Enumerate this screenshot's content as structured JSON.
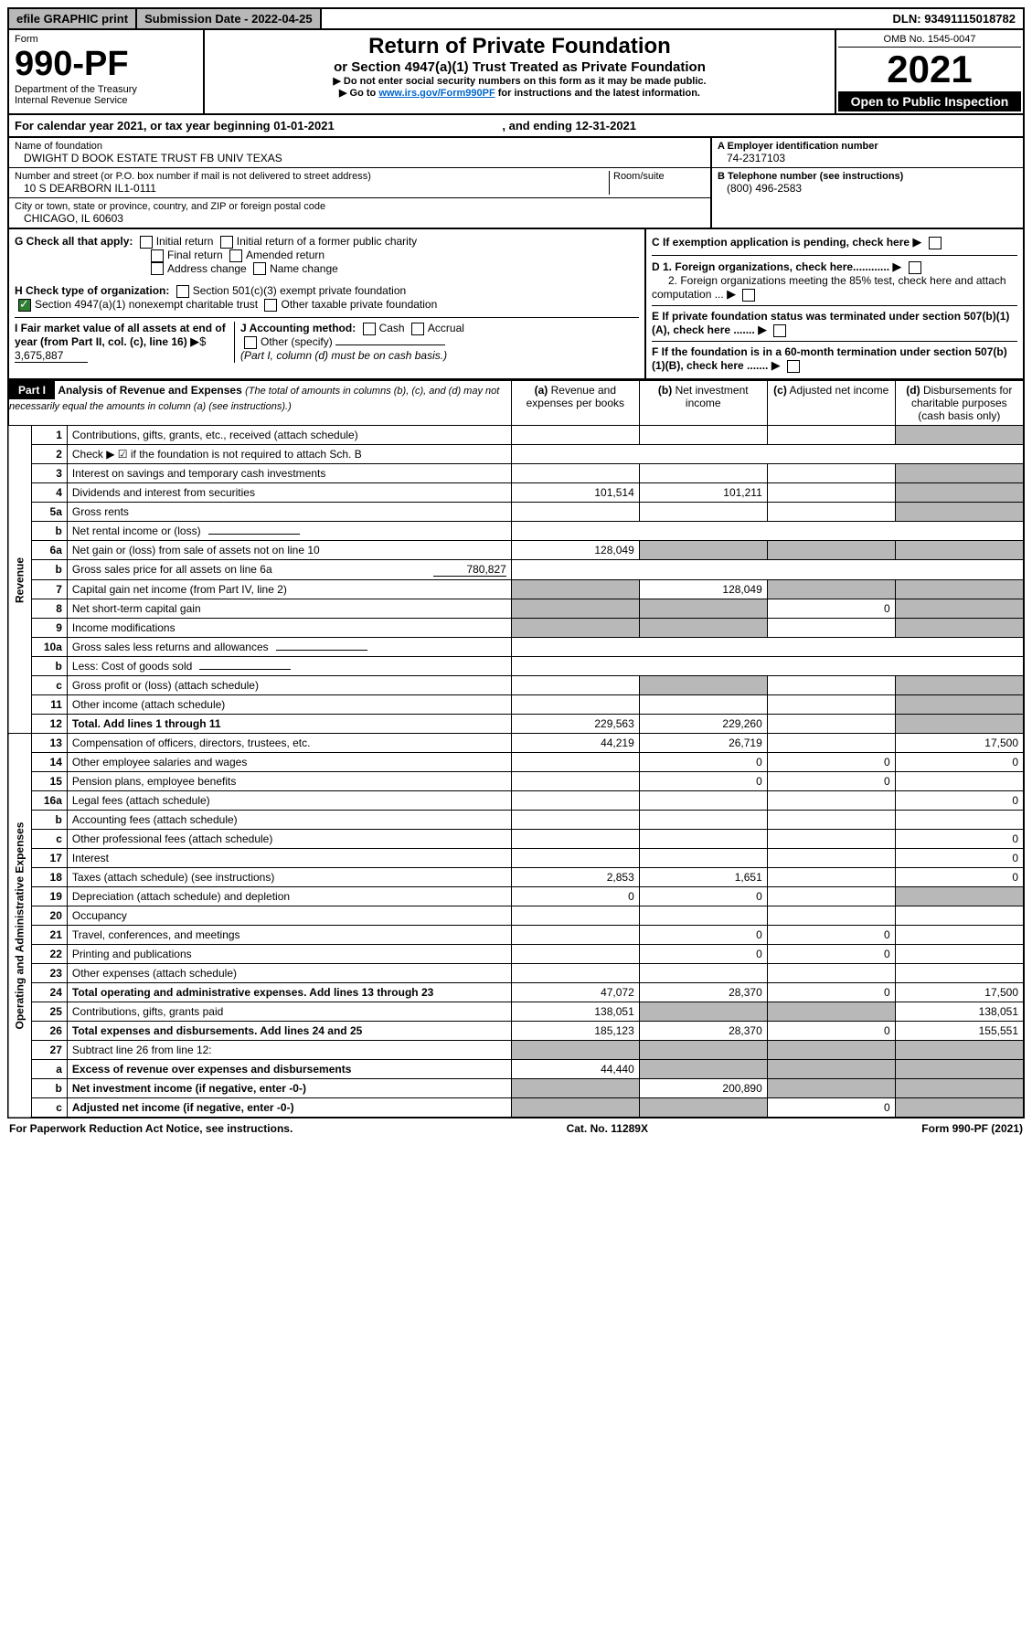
{
  "topbar": {
    "efile": "efile GRAPHIC print",
    "submission_label": "Submission Date - 2022-04-25",
    "dln": "DLN: 93491115018782"
  },
  "header": {
    "form_label": "Form",
    "form_num": "990-PF",
    "dept": "Department of the Treasury",
    "irs": "Internal Revenue Service",
    "title": "Return of Private Foundation",
    "subtitle": "or Section 4947(a)(1) Trust Treated as Private Foundation",
    "note1": "▶ Do not enter social security numbers on this form as it may be made public.",
    "note2_pre": "▶ Go to ",
    "note2_link": "www.irs.gov/Form990PF",
    "note2_post": " for instructions and the latest information.",
    "omb": "OMB No. 1545-0047",
    "year": "2021",
    "open": "Open to Public Inspection"
  },
  "cal_year": {
    "text": "For calendar year 2021, or tax year beginning 01-01-2021",
    "ending": ", and ending 12-31-2021"
  },
  "info": {
    "name_label": "Name of foundation",
    "name": "DWIGHT D BOOK ESTATE TRUST FB UNIV TEXAS",
    "addr_label": "Number and street (or P.O. box number if mail is not delivered to street address)",
    "addr": "10 S DEARBORN IL1-0111",
    "room_label": "Room/suite",
    "city_label": "City or town, state or province, country, and ZIP or foreign postal code",
    "city": "CHICAGO, IL  60603",
    "a_label": "A Employer identification number",
    "a_val": "74-2317103",
    "b_label": "B Telephone number (see instructions)",
    "b_val": "(800) 496-2583",
    "c_label": "C If exemption application is pending, check here",
    "d1": "D 1. Foreign organizations, check here............",
    "d2": "2. Foreign organizations meeting the 85% test, check here and attach computation ...",
    "e": "E  If private foundation status was terminated under section 507(b)(1)(A), check here .......",
    "f": "F  If the foundation is in a 60-month termination under section 507(b)(1)(B), check here .......",
    "g_label": "G Check all that apply:",
    "g_items": [
      "Initial return",
      "Initial return of a former public charity",
      "Final return",
      "Amended return",
      "Address change",
      "Name change"
    ],
    "h_label": "H Check type of organization:",
    "h1": "Section 501(c)(3) exempt private foundation",
    "h2": "Section 4947(a)(1) nonexempt charitable trust",
    "h3": "Other taxable private foundation",
    "i_label": "I Fair market value of all assets at end of year (from Part II, col. (c), line 16)",
    "i_val": "3,675,887",
    "j_label": "J Accounting method:",
    "j_cash": "Cash",
    "j_accrual": "Accrual",
    "j_other": "Other (specify)",
    "j_note": "(Part I, column (d) must be on cash basis.)"
  },
  "part1": {
    "label": "Part I",
    "title": "Analysis of Revenue and Expenses",
    "note": "(The total of amounts in columns (b), (c), and (d) may not necessarily equal the amounts in column (a) (see instructions).)",
    "col_a": "Revenue and expenses per books",
    "col_b": "Net investment income",
    "col_c": "Adjusted net income",
    "col_d": "Disbursements for charitable purposes (cash basis only)"
  },
  "section_labels": {
    "revenue": "Revenue",
    "expenses": "Operating and Administrative Expenses"
  },
  "rows": [
    {
      "n": "1",
      "label": "Contributions, gifts, grants, etc., received (attach schedule)",
      "a": "",
      "b": "",
      "c": "",
      "d": "",
      "dshade": true
    },
    {
      "n": "2",
      "label": "Check ▶ ☑ if the foundation is not required to attach Sch. B",
      "dots": true,
      "nocols": true
    },
    {
      "n": "3",
      "label": "Interest on savings and temporary cash investments",
      "a": "",
      "b": "",
      "c": "",
      "d": "",
      "dshade": true
    },
    {
      "n": "4",
      "label": "Dividends and interest from securities",
      "dots": true,
      "a": "101,514",
      "b": "101,211",
      "c": "",
      "d": "",
      "dshade": true
    },
    {
      "n": "5a",
      "label": "Gross rents",
      "dots": true,
      "a": "",
      "b": "",
      "c": "",
      "d": "",
      "dshade": true
    },
    {
      "n": "b",
      "label": "Net rental income or (loss)",
      "inline": true,
      "nocols": true
    },
    {
      "n": "6a",
      "label": "Net gain or (loss) from sale of assets not on line 10",
      "a": "128,049",
      "bshade": true,
      "cshade": true,
      "dshade": true
    },
    {
      "n": "b",
      "label": "Gross sales price for all assets on line 6a",
      "inline_val": "780,827",
      "nocols": true
    },
    {
      "n": "7",
      "label": "Capital gain net income (from Part IV, line 2)",
      "dots": true,
      "ashade": true,
      "b": "128,049",
      "cshade": true,
      "dshade": true
    },
    {
      "n": "8",
      "label": "Net short-term capital gain",
      "dots": true,
      "ashade": true,
      "bshade": true,
      "c": "0",
      "dshade": true
    },
    {
      "n": "9",
      "label": "Income modifications",
      "dots": true,
      "ashade": true,
      "bshade": true,
      "c": "",
      "dshade": true
    },
    {
      "n": "10a",
      "label": "Gross sales less returns and allowances",
      "inline": true,
      "nocols": true
    },
    {
      "n": "b",
      "label": "Less: Cost of goods sold",
      "dots": true,
      "inline": true,
      "nocols": true
    },
    {
      "n": "c",
      "label": "Gross profit or (loss) (attach schedule)",
      "dots": true,
      "a": "",
      "bshade": true,
      "c": "",
      "dshade": true
    },
    {
      "n": "11",
      "label": "Other income (attach schedule)",
      "dots": true,
      "a": "",
      "b": "",
      "c": "",
      "dshade": true
    },
    {
      "n": "12",
      "label": "Total. Add lines 1 through 11",
      "bold": true,
      "dots": true,
      "a": "229,563",
      "b": "229,260",
      "c": "",
      "dshade": true
    },
    {
      "n": "13",
      "label": "Compensation of officers, directors, trustees, etc.",
      "a": "44,219",
      "b": "26,719",
      "c": "",
      "d": "17,500"
    },
    {
      "n": "14",
      "label": "Other employee salaries and wages",
      "dots": true,
      "a": "",
      "b": "0",
      "c": "0",
      "d": "0"
    },
    {
      "n": "15",
      "label": "Pension plans, employee benefits",
      "dots": true,
      "a": "",
      "b": "0",
      "c": "0",
      "d": ""
    },
    {
      "n": "16a",
      "label": "Legal fees (attach schedule)",
      "dots": true,
      "a": "",
      "b": "",
      "c": "",
      "d": "0"
    },
    {
      "n": "b",
      "label": "Accounting fees (attach schedule)",
      "dots": true,
      "a": "",
      "b": "",
      "c": "",
      "d": ""
    },
    {
      "n": "c",
      "label": "Other professional fees (attach schedule)",
      "dots": true,
      "a": "",
      "b": "",
      "c": "",
      "d": "0"
    },
    {
      "n": "17",
      "label": "Interest",
      "dots": true,
      "a": "",
      "b": "",
      "c": "",
      "d": "0"
    },
    {
      "n": "18",
      "label": "Taxes (attach schedule) (see instructions)",
      "dots": true,
      "a": "2,853",
      "b": "1,651",
      "c": "",
      "d": "0"
    },
    {
      "n": "19",
      "label": "Depreciation (attach schedule) and depletion",
      "dots": true,
      "a": "0",
      "b": "0",
      "c": "",
      "dshade": true
    },
    {
      "n": "20",
      "label": "Occupancy",
      "dots": true,
      "a": "",
      "b": "",
      "c": "",
      "d": ""
    },
    {
      "n": "21",
      "label": "Travel, conferences, and meetings",
      "dots": true,
      "a": "",
      "b": "0",
      "c": "0",
      "d": ""
    },
    {
      "n": "22",
      "label": "Printing and publications",
      "dots": true,
      "a": "",
      "b": "0",
      "c": "0",
      "d": ""
    },
    {
      "n": "23",
      "label": "Other expenses (attach schedule)",
      "dots": true,
      "a": "",
      "b": "",
      "c": "",
      "d": ""
    },
    {
      "n": "24",
      "label": "Total operating and administrative expenses. Add lines 13 through 23",
      "bold": true,
      "dots": true,
      "a": "47,072",
      "b": "28,370",
      "c": "0",
      "d": "17,500"
    },
    {
      "n": "25",
      "label": "Contributions, gifts, grants paid",
      "dots": true,
      "a": "138,051",
      "bshade": true,
      "cshade": true,
      "d": "138,051"
    },
    {
      "n": "26",
      "label": "Total expenses and disbursements. Add lines 24 and 25",
      "bold": true,
      "a": "185,123",
      "b": "28,370",
      "c": "0",
      "d": "155,551"
    },
    {
      "n": "27",
      "label": "Subtract line 26 from line 12:",
      "ashade": true,
      "bshade": true,
      "cshade": true,
      "dshade": true
    },
    {
      "n": "a",
      "label": "Excess of revenue over expenses and disbursements",
      "bold": true,
      "a": "44,440",
      "bshade": true,
      "cshade": true,
      "dshade": true
    },
    {
      "n": "b",
      "label": "Net investment income (if negative, enter -0-)",
      "bold": true,
      "ashade": true,
      "b": "200,890",
      "cshade": true,
      "dshade": true
    },
    {
      "n": "c",
      "label": "Adjusted net income (if negative, enter -0-)",
      "bold": true,
      "dots": true,
      "ashade": true,
      "bshade": true,
      "c": "0",
      "dshade": true
    }
  ],
  "footer": {
    "left": "For Paperwork Reduction Act Notice, see instructions.",
    "mid": "Cat. No. 11289X",
    "right": "Form 990-PF (2021)"
  }
}
